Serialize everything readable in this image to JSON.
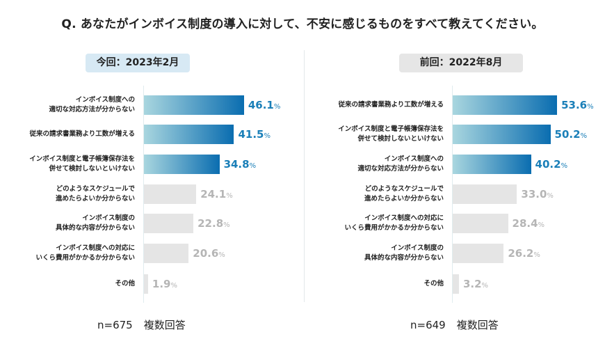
{
  "title": "Q. あなたがインボイス制度の導入に対して、不安に感じるものをすべて教えてください。",
  "colors": {
    "highlight_start": "#a9d6df",
    "highlight_end": "#0a6db0",
    "highlight_text": "#1a7fb8",
    "muted_bar": "#e5e5e5",
    "muted_text": "#b5b5b5",
    "current_badge": "#d7e9f4",
    "previous_badge": "#e6e6e6"
  },
  "chart_data": [
    {
      "type": "bar",
      "orientation": "horizontal",
      "title": "今回：2023年2月",
      "unit": "%",
      "footer_n": "n=675",
      "footer_note": "複数回答",
      "categories": [
        "インボイス制度への\n適切な対応方法が分からない",
        "従来の請求書業務より工数が増える",
        "インボイス制度と電子帳簿保存法を\n併せて検討しないといけない",
        "どのようなスケジュールで\n進めたらよいか分からない",
        "インボイス制度の\n具体的な内容が分からない",
        "インボイス制度への対応に\nいくら費用がかかるか分からない",
        "その他"
      ],
      "values": [
        46.1,
        41.5,
        34.8,
        24.1,
        22.8,
        20.6,
        1.9
      ],
      "labels": [
        "46.1",
        "41.5",
        "34.8",
        "24.1",
        "22.8",
        "20.6",
        "1.9"
      ],
      "highlighted": [
        true,
        true,
        true,
        false,
        false,
        false,
        false
      ]
    },
    {
      "type": "bar",
      "orientation": "horizontal",
      "title": "前回：2022年8月",
      "unit": "%",
      "footer_n": "n=649",
      "footer_note": "複数回答",
      "categories": [
        "従来の請求書業務より工数が増える",
        "インボイス制度と電子帳簿保存法を\n併せて検討しないといけない",
        "インボイス制度への\n適切な対応方法が分からない",
        "どのようなスケジュールで\n進めたらよいか分からない",
        "インボイス制度への対応に\nいくら費用がかかるか分からない",
        "インボイス制度の\n具体的な内容が分からない",
        "その他"
      ],
      "values": [
        53.6,
        50.2,
        40.2,
        33.0,
        28.4,
        26.2,
        3.2
      ],
      "labels": [
        "53.6",
        "50.2",
        "40.2",
        "33.0",
        "28.4",
        "26.2",
        "3.2"
      ],
      "highlighted": [
        true,
        true,
        true,
        false,
        false,
        false,
        false
      ]
    }
  ]
}
